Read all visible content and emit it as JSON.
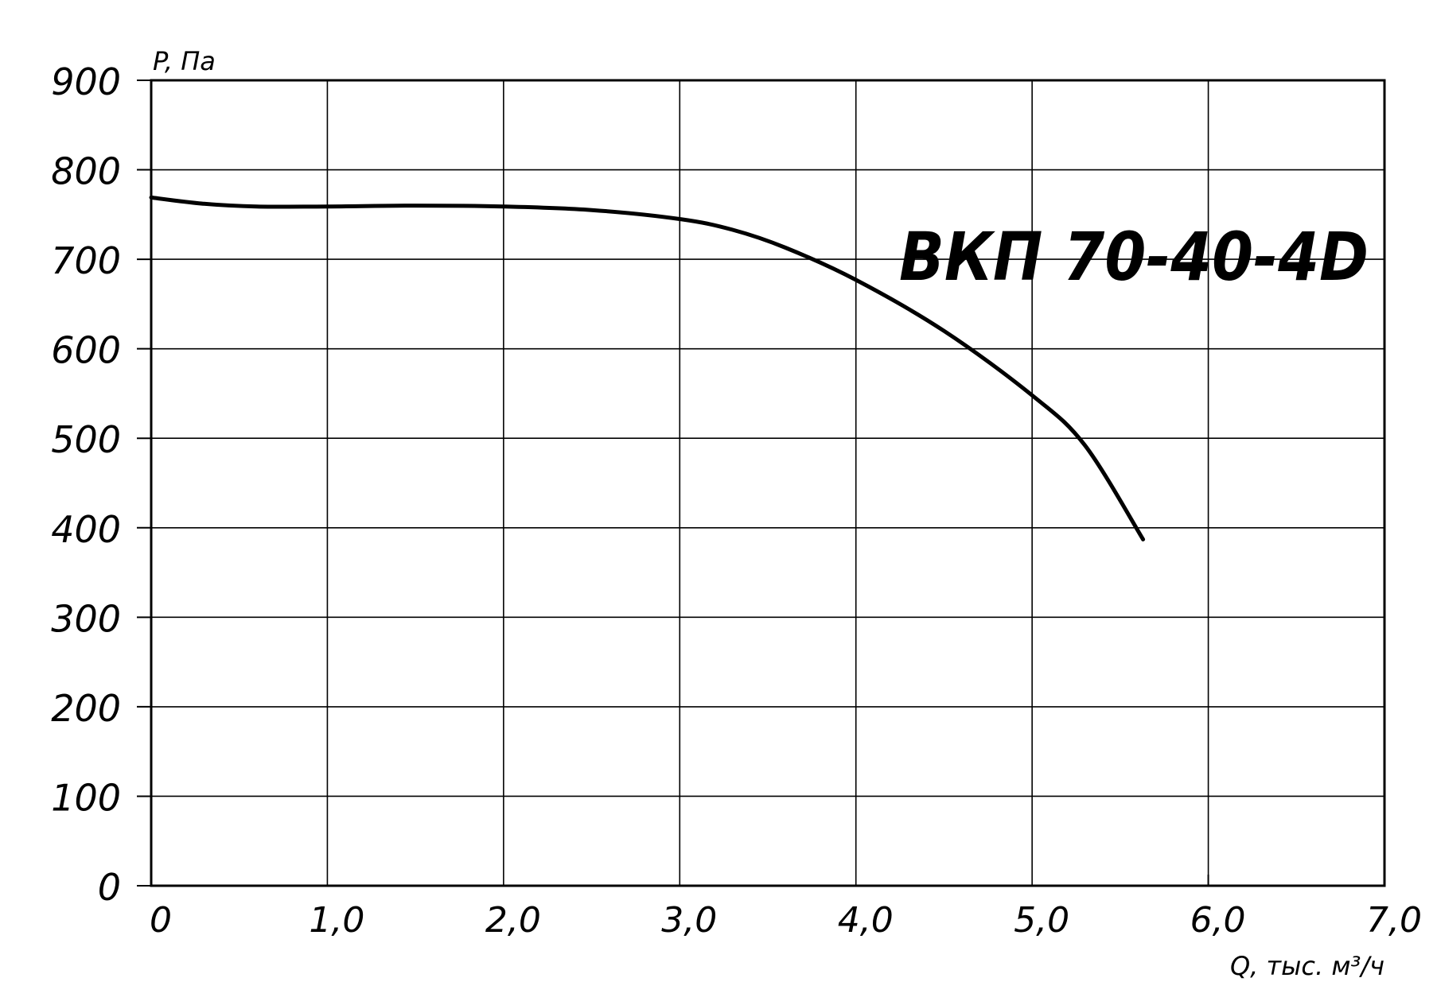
{
  "chart_data": {
    "type": "line",
    "title": "ВКП 70-40-4D",
    "xlabel": "Q, тыс. м³/ч",
    "ylabel": "P, Па",
    "xlim": [
      0,
      7
    ],
    "ylim": [
      0,
      900
    ],
    "x_ticks": [
      0,
      1,
      2,
      3,
      4,
      5,
      6,
      7
    ],
    "x_tick_labels": [
      "0",
      "1,0",
      "2,0",
      "3,0",
      "4,0",
      "5,0",
      "6,0",
      "7,0"
    ],
    "y_ticks": [
      0,
      100,
      200,
      300,
      400,
      500,
      600,
      700,
      800,
      900
    ],
    "y_tick_labels": [
      "0",
      "100",
      "200",
      "300",
      "400",
      "500",
      "600",
      "700",
      "800",
      "900"
    ],
    "grid": true,
    "series": [
      {
        "x": [
          0,
          0.3,
          0.6,
          1.0,
          1.5,
          2.0,
          2.5,
          3.0,
          3.3,
          3.6,
          4.0,
          4.5,
          5.0,
          5.3,
          5.63
        ],
        "y": [
          769,
          762,
          759,
          759,
          760,
          759,
          755,
          745,
          733,
          713,
          677,
          620,
          548,
          492,
          387
        ]
      }
    ]
  }
}
